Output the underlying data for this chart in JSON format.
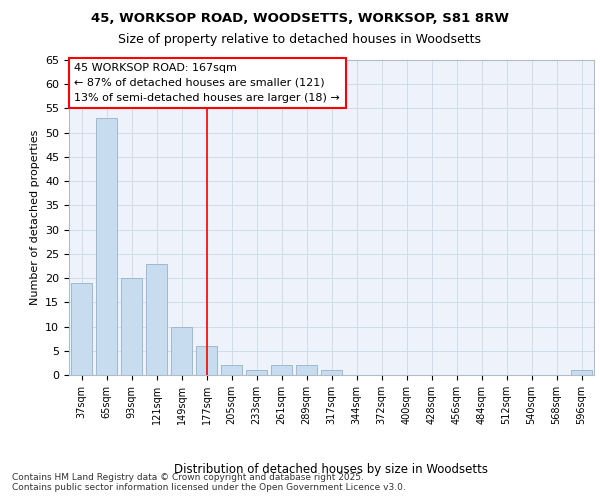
{
  "title_line1": "45, WORKSOP ROAD, WOODSETTS, WORKSOP, S81 8RW",
  "title_line2": "Size of property relative to detached houses in Woodsetts",
  "xlabel": "Distribution of detached houses by size in Woodsetts",
  "ylabel": "Number of detached properties",
  "categories": [
    "37sqm",
    "65sqm",
    "93sqm",
    "121sqm",
    "149sqm",
    "177sqm",
    "205sqm",
    "233sqm",
    "261sqm",
    "289sqm",
    "317sqm",
    "344sqm",
    "372sqm",
    "400sqm",
    "428sqm",
    "456sqm",
    "484sqm",
    "512sqm",
    "540sqm",
    "568sqm",
    "596sqm"
  ],
  "values": [
    19,
    53,
    20,
    23,
    10,
    6,
    2,
    1,
    2,
    2,
    1,
    0,
    0,
    0,
    0,
    0,
    0,
    0,
    0,
    0,
    1
  ],
  "bar_color": "#c8dcf0",
  "bar_edge_color": "#a0b8d0",
  "grid_color": "#d0dce8",
  "annotation_box_text": "45 WORKSOP ROAD: 167sqm\n← 87% of detached houses are smaller (121)\n13% of semi-detached houses are larger (18) →",
  "red_line_x": 5,
  "ylim": [
    0,
    65
  ],
  "yticks": [
    0,
    5,
    10,
    15,
    20,
    25,
    30,
    35,
    40,
    45,
    50,
    55,
    60,
    65
  ],
  "footer_text": "Contains HM Land Registry data © Crown copyright and database right 2025.\nContains public sector information licensed under the Open Government Licence v3.0.",
  "bg_color": "#ffffff",
  "plot_bg_color": "#eef3fb"
}
